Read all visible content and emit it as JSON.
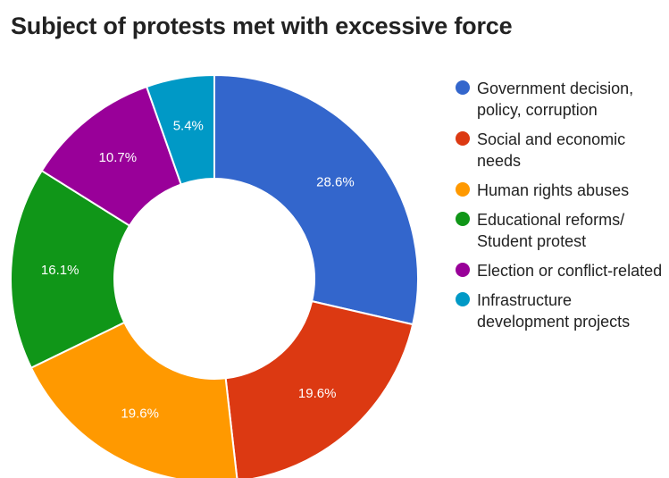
{
  "chart_data": {
    "type": "pie",
    "title": "Subject of protests met with excessive force",
    "categories": [
      "Government decision, policy, corruption",
      "Social and economic needs",
      "Human rights abuses",
      "Educational reforms/ Student protest",
      "Election or conflict-related",
      "Infrastructure development projects"
    ],
    "values": [
      28.6,
      19.6,
      19.6,
      16.1,
      10.7,
      5.4
    ],
    "value_labels": [
      "28.6%",
      "19.6%",
      "19.6%",
      "16.1%",
      "10.7%",
      "5.4%"
    ],
    "colors": [
      "#3366cc",
      "#dc3912",
      "#ff9900",
      "#109618",
      "#990099",
      "#0099c6"
    ],
    "donut": true,
    "legend_position": "right"
  }
}
